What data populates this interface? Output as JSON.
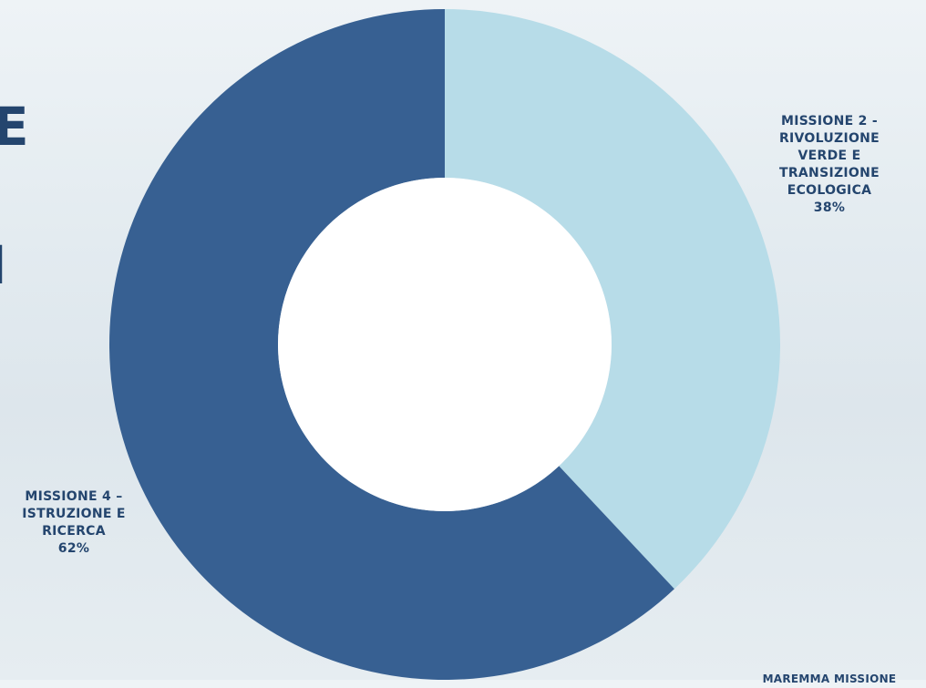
{
  "chart_data": {
    "type": "pie",
    "categories": [
      "MISSIONE 2 - RIVOLUZIONE VERDE E TRANSIZIONE ECOLOGICA",
      "MISSIONE 4 – ISTRUZIONE E RICERCA"
    ],
    "values": [
      38,
      62
    ],
    "value_labels": [
      "38%",
      "62%"
    ],
    "colors": [
      "#b7dce8",
      "#376092"
    ]
  },
  "page": {
    "fragments": [
      "E",
      "I",
      "MAREMMA MISSIONE"
    ]
  }
}
